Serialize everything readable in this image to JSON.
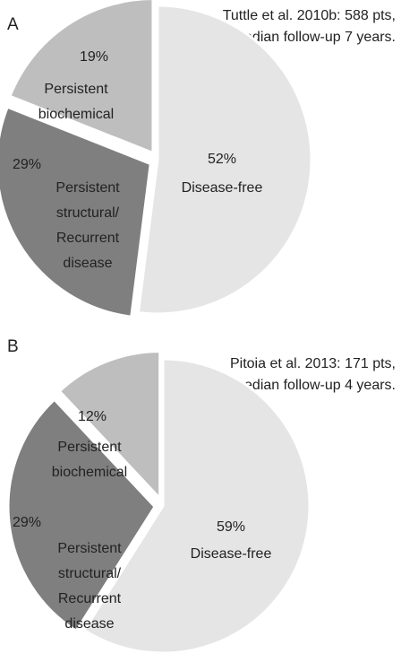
{
  "chart_data": [
    {
      "type": "pie",
      "panel": "A",
      "annotation": [
        "Tuttle et al. 2010b: 588 pts,",
        "median follow-up 7 years."
      ],
      "categories": [
        [
          "Disease-free"
        ],
        [
          "Persistent",
          "structural/",
          "Recurrent",
          "disease"
        ],
        [
          "Persistent",
          "biochemical"
        ]
      ],
      "values": [
        52,
        29,
        19
      ],
      "value_labels": [
        "52%",
        "29%",
        "19%"
      ],
      "colors": [
        "#e5e5e5",
        "#7f7f7f",
        "#bebebe"
      ]
    },
    {
      "type": "pie",
      "panel": "B",
      "annotation": [
        "Pitoia et al. 2013: 171 pts,",
        "median follow-up 4 years."
      ],
      "categories": [
        [
          "Disease-free"
        ],
        [
          "Persistent",
          "structural/",
          "Recurrent",
          "disease"
        ],
        [
          "Persistent",
          "biochemical"
        ]
      ],
      "values": [
        59,
        29,
        12
      ],
      "value_labels": [
        "59%",
        "29%",
        "12%"
      ],
      "colors": [
        "#e5e5e5",
        "#7f7f7f",
        "#bebebe"
      ]
    }
  ]
}
